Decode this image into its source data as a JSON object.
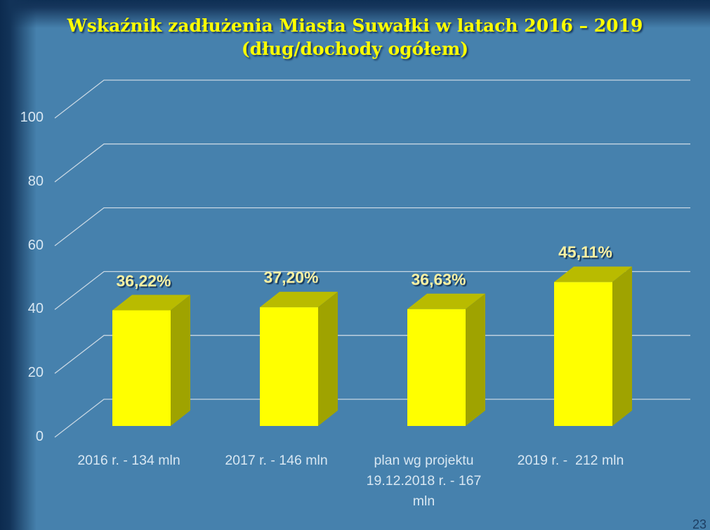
{
  "title": "Wskaźnik zadłużenia Miasta Suwałki w latach 2016 – 2019\n(dług/dochody ogółem)",
  "page_number": "23",
  "colors": {
    "background": "#4681AD",
    "edge_dark": "#0C2B4F",
    "title_text": "#FFFF00",
    "bar_front": "#FFFF00",
    "bar_top": "#B9BB00",
    "bar_side": "#9FA300",
    "gridline": "#C8D7E3",
    "axis_text": "#D8E7F2",
    "value_label_text": "#FBF1A2",
    "label_shadow": "#16365C"
  },
  "chart_data": {
    "type": "bar",
    "projection": "3d",
    "title": "Wskaźnik zadłużenia Miasta Suwałki w latach 2016 – 2019 (dług/dochody ogółem)",
    "categories": [
      "2016 r. - 134 mln",
      "2017 r. - 146 mln",
      "plan wg projektu\n19.12.2018 r. - 167\nmln",
      "2019 r. -  212 mln"
    ],
    "values": [
      36.22,
      37.2,
      36.63,
      45.11
    ],
    "value_labels": [
      "36,22%",
      "37,20%",
      "36,63%",
      "45,11%"
    ],
    "yticks": [
      0,
      20,
      40,
      60,
      80,
      100
    ],
    "ylim": [
      0,
      100
    ],
    "grid": true,
    "legend": "none",
    "unit": "%"
  }
}
